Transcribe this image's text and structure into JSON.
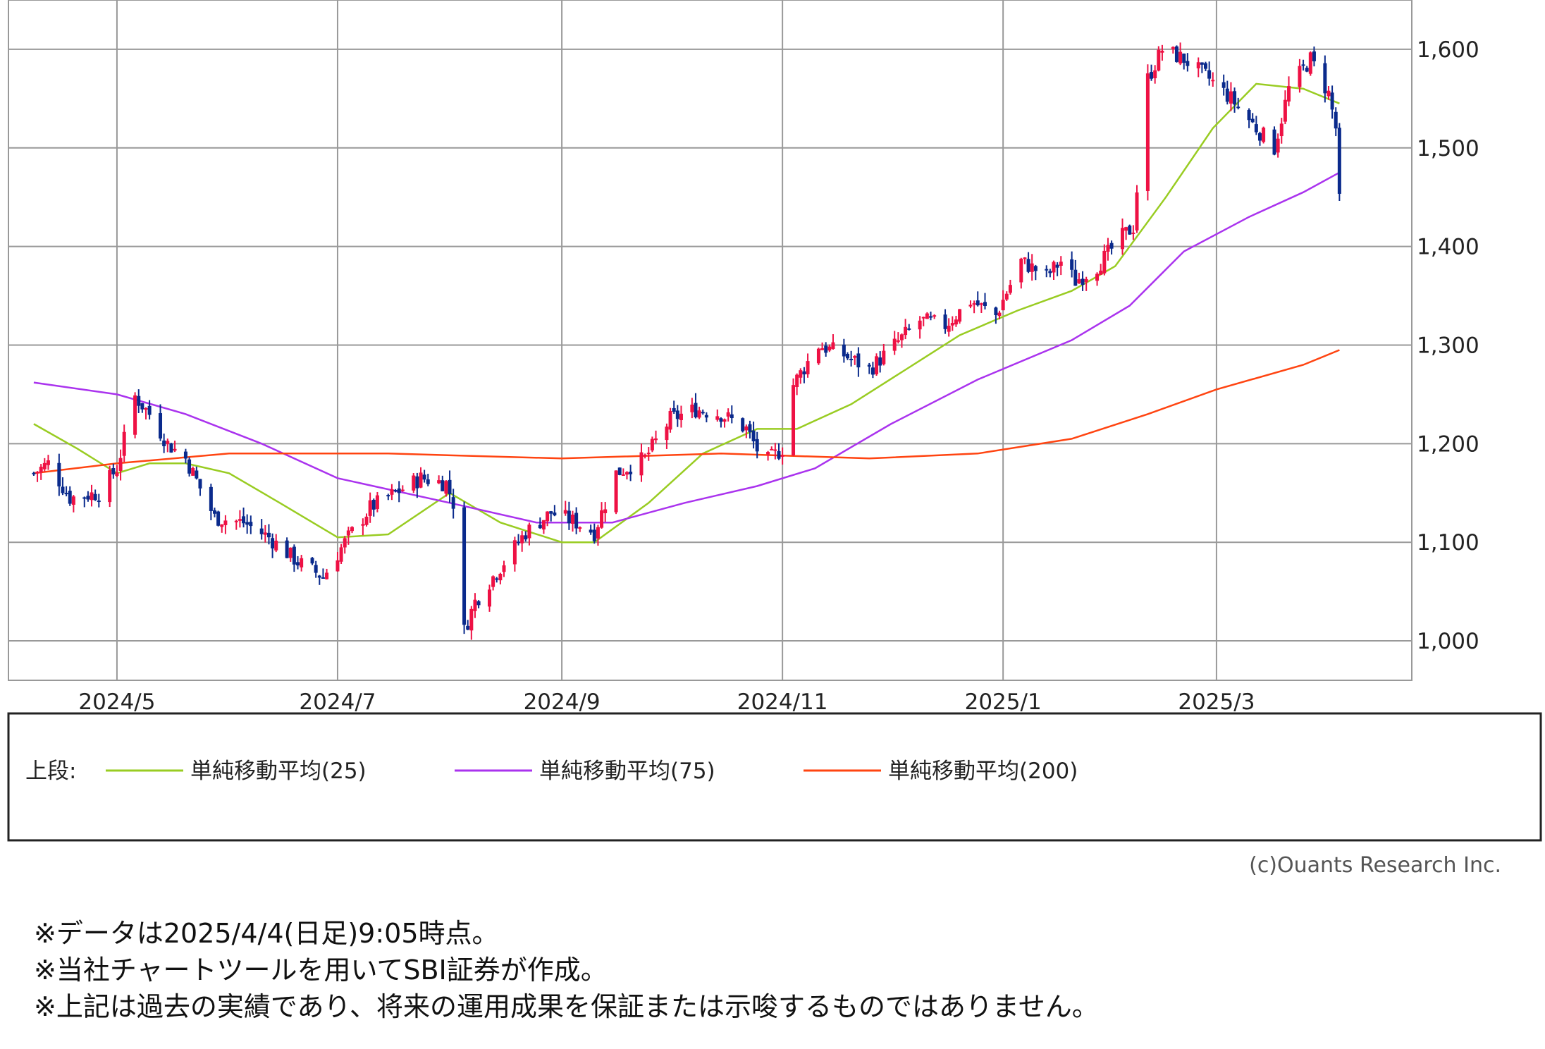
{
  "chart_data": {
    "type": "candlestick",
    "y_ticks": [
      "1,600",
      "1,500",
      "1,400",
      "1,300",
      "1,200",
      "1,100",
      "1,000"
    ],
    "y_tick_values": [
      1600,
      1500,
      1400,
      1300,
      1200,
      1100,
      1000
    ],
    "ylim": [
      960,
      1650
    ],
    "x_labels": [
      "2024/5",
      "2024/7",
      "2024/9",
      "2024/11",
      "2025/1",
      "2025/3"
    ],
    "x_range": [
      "2024-04-01",
      "2025-04-24"
    ],
    "x_label_dates": [
      "2024-05-01",
      "2024-07-01",
      "2024-09-01",
      "2024-11-01",
      "2025-01-01",
      "2025-03-01"
    ],
    "grid": true,
    "colors": {
      "up": "#ee1144",
      "down": "#0a2a8c",
      "ma25": "#99cc22",
      "ma75": "#aa33ee",
      "ma200": "#ff4411",
      "grid": "#999999"
    },
    "price_path": [
      [
        "2024-04-08",
        1170
      ],
      [
        "2024-04-12",
        1180
      ],
      [
        "2024-04-18",
        1145
      ],
      [
        "2024-04-26",
        1150
      ],
      [
        "2024-05-01",
        1175
      ],
      [
        "2024-05-06",
        1248
      ],
      [
        "2024-05-10",
        1230
      ],
      [
        "2024-05-15",
        1200
      ],
      [
        "2024-05-20",
        1185
      ],
      [
        "2024-05-28",
        1125
      ],
      [
        "2024-06-05",
        1120
      ],
      [
        "2024-06-12",
        1105
      ],
      [
        "2024-06-20",
        1080
      ],
      [
        "2024-06-27",
        1065
      ],
      [
        "2024-07-03",
        1100
      ],
      [
        "2024-07-10",
        1135
      ],
      [
        "2024-07-17",
        1150
      ],
      [
        "2024-07-24",
        1165
      ],
      [
        "2024-07-31",
        1160
      ],
      [
        "2024-08-02",
        1140
      ],
      [
        "2024-08-05",
        1010
      ],
      [
        "2024-08-08",
        1040
      ],
      [
        "2024-08-15",
        1075
      ],
      [
        "2024-08-22",
        1110
      ],
      [
        "2024-08-29",
        1130
      ],
      [
        "2024-09-05",
        1120
      ],
      [
        "2024-09-10",
        1110
      ],
      [
        "2024-09-16",
        1170
      ],
      [
        "2024-09-24",
        1185
      ],
      [
        "2024-10-01",
        1225
      ],
      [
        "2024-10-08",
        1235
      ],
      [
        "2024-10-15",
        1230
      ],
      [
        "2024-10-22",
        1215
      ],
      [
        "2024-10-27",
        1180
      ],
      [
        "2024-11-01",
        1195
      ],
      [
        "2024-11-04",
        1260
      ],
      [
        "2024-11-11",
        1300
      ],
      [
        "2024-11-18",
        1290
      ],
      [
        "2024-11-25",
        1275
      ],
      [
        "2024-12-02",
        1300
      ],
      [
        "2024-12-09",
        1325
      ],
      [
        "2024-12-16",
        1320
      ],
      [
        "2024-12-23",
        1345
      ],
      [
        "2024-12-30",
        1330
      ],
      [
        "2025-01-06",
        1385
      ],
      [
        "2025-01-13",
        1370
      ],
      [
        "2025-01-17",
        1385
      ],
      [
        "2025-01-21",
        1365
      ],
      [
        "2025-01-27",
        1380
      ],
      [
        "2025-02-03",
        1410
      ],
      [
        "2025-02-06",
        1420
      ],
      [
        "2025-02-10",
        1570
      ],
      [
        "2025-02-14",
        1600
      ],
      [
        "2025-02-20",
        1590
      ],
      [
        "2025-02-27",
        1570
      ],
      [
        "2025-03-05",
        1550
      ],
      [
        "2025-03-12",
        1520
      ],
      [
        "2025-03-17",
        1500
      ],
      [
        "2025-03-21",
        1560
      ],
      [
        "2025-03-27",
        1590
      ],
      [
        "2025-04-01",
        1555
      ],
      [
        "2025-04-03",
        1520
      ],
      [
        "2025-04-04",
        1445
      ]
    ],
    "series": [
      {
        "name": "単純移動平均(25)",
        "color": "#99cc22",
        "points": [
          [
            "2024-04-08",
            1220
          ],
          [
            "2024-04-20",
            1195
          ],
          [
            "2024-05-01",
            1170
          ],
          [
            "2024-05-10",
            1180
          ],
          [
            "2024-05-20",
            1180
          ],
          [
            "2024-06-01",
            1170
          ],
          [
            "2024-06-15",
            1140
          ],
          [
            "2024-07-01",
            1105
          ],
          [
            "2024-07-15",
            1108
          ],
          [
            "2024-08-01",
            1150
          ],
          [
            "2024-08-15",
            1120
          ],
          [
            "2024-09-01",
            1100
          ],
          [
            "2024-09-10",
            1100
          ],
          [
            "2024-09-25",
            1140
          ],
          [
            "2024-10-10",
            1190
          ],
          [
            "2024-10-25",
            1215
          ],
          [
            "2024-11-05",
            1215
          ],
          [
            "2024-11-20",
            1240
          ],
          [
            "2024-12-05",
            1275
          ],
          [
            "2024-12-20",
            1310
          ],
          [
            "2025-01-05",
            1335
          ],
          [
            "2025-01-20",
            1355
          ],
          [
            "2025-02-01",
            1380
          ],
          [
            "2025-02-15",
            1450
          ],
          [
            "2025-02-28",
            1520
          ],
          [
            "2025-03-12",
            1565
          ],
          [
            "2025-03-25",
            1560
          ],
          [
            "2025-04-04",
            1545
          ]
        ]
      },
      {
        "name": "単純移動平均(75)",
        "color": "#aa33ee",
        "points": [
          [
            "2024-04-08",
            1262
          ],
          [
            "2024-05-01",
            1250
          ],
          [
            "2024-05-20",
            1230
          ],
          [
            "2024-06-10",
            1200
          ],
          [
            "2024-07-01",
            1165
          ],
          [
            "2024-08-01",
            1140
          ],
          [
            "2024-08-25",
            1120
          ],
          [
            "2024-09-15",
            1120
          ],
          [
            "2024-10-05",
            1140
          ],
          [
            "2024-10-25",
            1157
          ],
          [
            "2024-11-10",
            1175
          ],
          [
            "2024-12-01",
            1220
          ],
          [
            "2024-12-25",
            1265
          ],
          [
            "2025-01-20",
            1305
          ],
          [
            "2025-02-05",
            1340
          ],
          [
            "2025-02-20",
            1395
          ],
          [
            "2025-03-10",
            1430
          ],
          [
            "2025-03-25",
            1455
          ],
          [
            "2025-04-04",
            1475
          ]
        ]
      },
      {
        "name": "単純移動平均(200)",
        "color": "#ff4411",
        "points": [
          [
            "2024-04-08",
            1170
          ],
          [
            "2024-05-01",
            1180
          ],
          [
            "2024-06-01",
            1190
          ],
          [
            "2024-07-15",
            1190
          ],
          [
            "2024-09-01",
            1185
          ],
          [
            "2024-10-15",
            1190
          ],
          [
            "2024-11-25",
            1185
          ],
          [
            "2024-12-25",
            1190
          ],
          [
            "2025-01-20",
            1205
          ],
          [
            "2025-02-10",
            1230
          ],
          [
            "2025-03-01",
            1255
          ],
          [
            "2025-03-25",
            1280
          ],
          [
            "2025-04-04",
            1295
          ]
        ]
      }
    ],
    "legend_prefix": "上段:",
    "legend": [
      "単純移動平均(25)",
      "単純移動平均(75)",
      "単純移動平均(200)"
    ],
    "legend_placement": "bottom"
  },
  "copyright": "(c)Ouants Research Inc.",
  "notes": [
    "※データは2025/4/4(日足)9:05時点。",
    "※当社チャートツールを用いてSBI証券が作成。",
    "※上記は過去の実績であり、将来の運用成果を保証または示唆するものではありません。"
  ]
}
